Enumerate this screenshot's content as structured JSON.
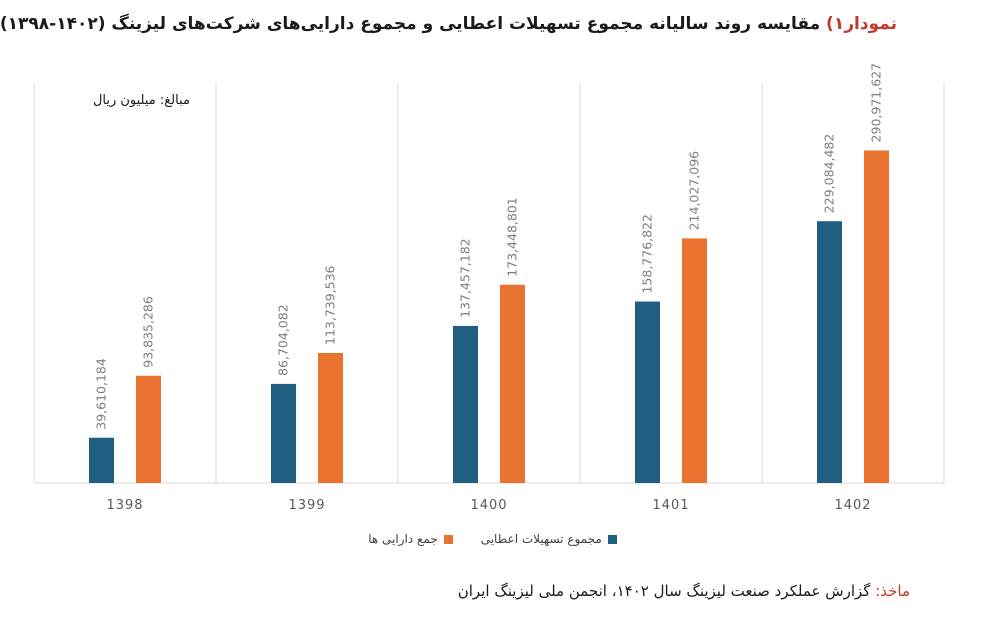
{
  "title": {
    "prefix": "نمودار۱)",
    "text": "مقایسه روند سالیانه مجموع تسهیلات اعطایی و مجموع دارایی‌های شرکت‌های لیزینگ (۱۴۰۲-۱۳۹۸)"
  },
  "unit_note": "مبالغ: میلیون ریال",
  "source": {
    "prefix": "ماخذ:",
    "text": "گزارش عملکرد صنعت لیزینگ سال ۱۴۰۲، انجمن ملی لیزینگ ایران"
  },
  "colors": {
    "loans": "#1f5f82",
    "assets": "#e9732f",
    "grid": "#d9d9d9"
  },
  "chart_data": {
    "type": "bar",
    "categories": [
      "1398",
      "1399",
      "1400",
      "1401",
      "1402"
    ],
    "series": [
      {
        "name": "مجموع تسهیلات اعطایی",
        "values": [
          39610184,
          86704082,
          137457182,
          158776822,
          229084482
        ],
        "labels": [
          "39,610,184",
          "86,704,082",
          "137,457,182",
          "158,776,822",
          "229,084,482"
        ]
      },
      {
        "name": "جمع دارایی ها",
        "values": [
          93835286,
          113739536,
          173448801,
          214027096,
          290971627
        ],
        "labels": [
          "93,835,286",
          "113,739,536",
          "173,448,801",
          "214,027,096",
          "290,971,627"
        ]
      }
    ],
    "ylim": [
      0,
      350000000
    ],
    "grid": "vertical category separators",
    "legend": "bottom-center"
  }
}
